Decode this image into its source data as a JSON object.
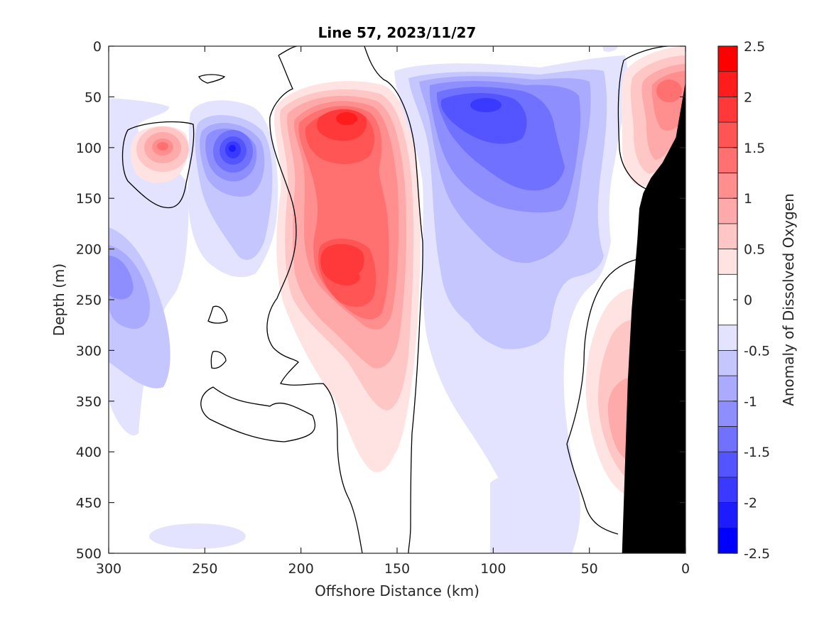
{
  "chart_data": {
    "type": "contour",
    "title": "Line 57, 2023/11/27",
    "xlabel": "Offshore Distance (km)",
    "ylabel": "Depth (m)",
    "xlim": [
      300,
      0
    ],
    "ylim": [
      500,
      0
    ],
    "x_reversed": true,
    "y_reversed": true,
    "x_ticks": [
      300,
      250,
      200,
      150,
      100,
      50,
      0
    ],
    "x_tick_labels": [
      "300",
      "250",
      "200",
      "150",
      "100",
      "50",
      "0"
    ],
    "y_ticks": [
      0,
      50,
      100,
      150,
      200,
      250,
      300,
      350,
      400,
      450,
      500
    ],
    "y_tick_labels": [
      "0",
      "50",
      "100",
      "150",
      "200",
      "250",
      "300",
      "350",
      "400",
      "450",
      "500"
    ],
    "grid": false,
    "colorbar": {
      "label": "Anomaly of Dissolved Oxygen",
      "range": [
        -2.5,
        2.5
      ],
      "ticks": [
        2.5,
        2,
        1.5,
        1,
        0.5,
        0,
        -0.5,
        -1,
        -1.5,
        -2,
        -2.5
      ],
      "tick_labels": [
        "2.5",
        "2",
        "1.5",
        "1",
        "0.5",
        "0",
        "-0.5",
        "-1",
        "-1.5",
        "-2",
        "-2.5"
      ],
      "levels": [
        -2.5,
        -2.25,
        -2,
        -1.75,
        -1.5,
        -1.25,
        -1,
        -0.75,
        -0.5,
        -0.25,
        0.25,
        0.5,
        0.75,
        1,
        1.25,
        1.5,
        1.75,
        2,
        2.25,
        2.5
      ],
      "colors_top_to_bottom": [
        "#ff0000",
        "#ff1c1c",
        "#ff3939",
        "#ff5555",
        "#ff7171",
        "#ff8e8e",
        "#ffaaaa",
        "#ffc6c6",
        "#ffe3e3",
        "#ffffff",
        "#ffffff",
        "#e3e3ff",
        "#c6c6ff",
        "#aaaaff",
        "#8e8eff",
        "#7171ff",
        "#5555ff",
        "#3939ff",
        "#1c1cff",
        "#0000ff"
      ]
    },
    "zero_contour_color": "#000000",
    "bathymetry_color": "#000000",
    "seafloor_profile": [
      {
        "x": 0,
        "y": 35
      },
      {
        "x": 5,
        "y": 90
      },
      {
        "x": 12,
        "y": 115
      },
      {
        "x": 18,
        "y": 130
      },
      {
        "x": 22,
        "y": 145
      },
      {
        "x": 24,
        "y": 160
      },
      {
        "x": 25,
        "y": 190
      },
      {
        "x": 28,
        "y": 260
      },
      {
        "x": 30,
        "y": 330
      },
      {
        "x": 33,
        "y": 500
      }
    ],
    "anomaly_features": [
      {
        "x": 175,
        "y": 75,
        "value": 2.25
      },
      {
        "x": 175,
        "y": 215,
        "value": 1.75
      },
      {
        "x": 270,
        "y": 100,
        "value": 1.25
      },
      {
        "x": 10,
        "y": 45,
        "value": 1.25
      },
      {
        "x": 40,
        "y": 370,
        "value": 0.75
      },
      {
        "x": 235,
        "y": 100,
        "value": -2.25
      },
      {
        "x": 105,
        "y": 55,
        "value": -1.75
      },
      {
        "x": 290,
        "y": 225,
        "value": -1.25
      }
    ]
  }
}
